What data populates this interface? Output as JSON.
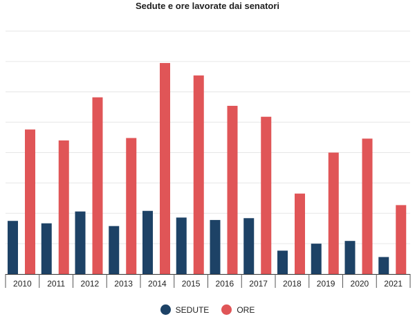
{
  "chart_data": {
    "type": "bar",
    "title": "Sedute e ore lavorate dai senatori",
    "xlabel": "",
    "ylabel": "",
    "categories": [
      "2010",
      "2011",
      "2012",
      "2013",
      "2014",
      "2015",
      "2016",
      "2017",
      "2018",
      "2019",
      "2020",
      "2021"
    ],
    "series": [
      {
        "name": "SEDUTE",
        "color": "#1d4266",
        "values": [
          175,
          167,
          206,
          158,
          208,
          186,
          178,
          184,
          77,
          100,
          109,
          56
        ]
      },
      {
        "name": "ORE",
        "color": "#e05557",
        "values": [
          476,
          440,
          582,
          448,
          695,
          654,
          554,
          518,
          265,
          400,
          446,
          227
        ]
      }
    ],
    "ylim": [
      0,
      800
    ],
    "grid": true,
    "legend_position": "bottom-center"
  }
}
